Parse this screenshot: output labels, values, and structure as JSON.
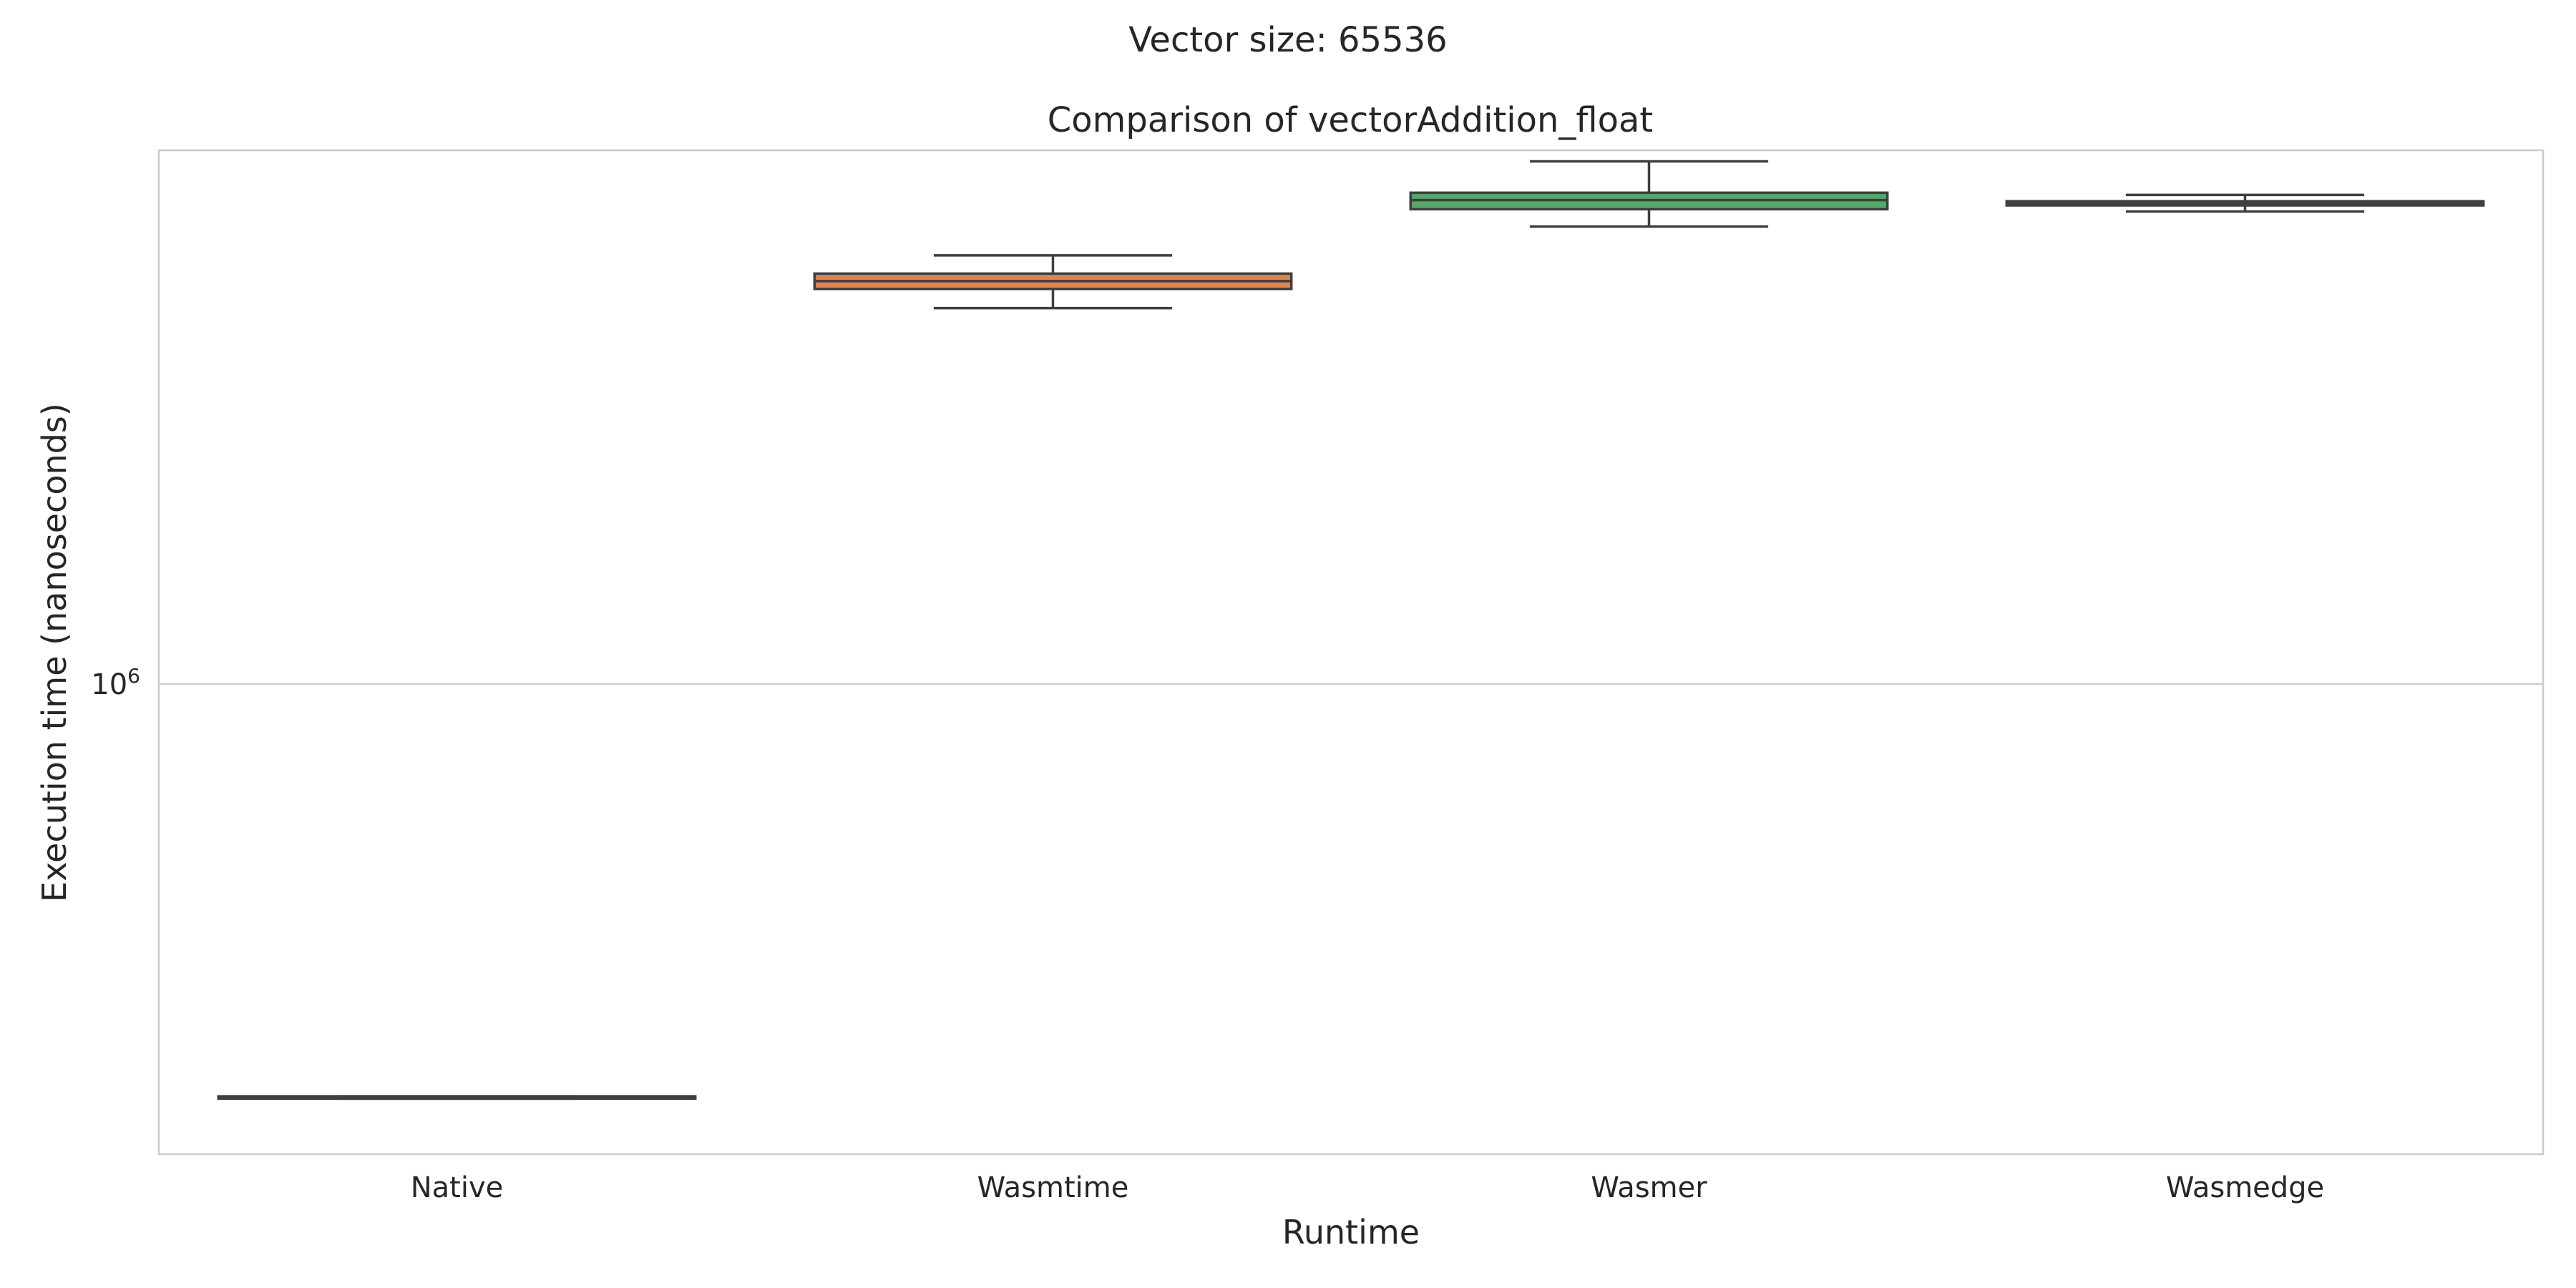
{
  "suptitle": "Vector size: 65536",
  "chart_data": {
    "type": "box",
    "title": "Comparison of vectorAddition_float",
    "xlabel": "Runtime",
    "ylabel": "Execution time (nanoseconds)",
    "yscale": "log",
    "ylim": [
      238000,
      5100000
    ],
    "yticks": [
      {
        "value": 1000000,
        "base": "10",
        "exp": "6"
      }
    ],
    "grid": "horizontal",
    "legend": "none",
    "categories": [
      "Native",
      "Wasmtime",
      "Wasmer",
      "Wasmedge"
    ],
    "boxes": [
      {
        "category": "Native",
        "color": "#4c72b0",
        "whislo": 282000,
        "q1": 282000,
        "med": 282800,
        "q3": 284000,
        "whishi": 284000
      },
      {
        "category": "Wasmtime",
        "color": "#dd8452",
        "whislo": 3150000,
        "q1": 3340000,
        "med": 3420000,
        "q3": 3500000,
        "whishi": 3700000
      },
      {
        "category": "Wasmer",
        "color": "#55a868",
        "whislo": 4040000,
        "q1": 4260000,
        "med": 4380000,
        "q3": 4480000,
        "whishi": 4930000
      },
      {
        "category": "Wasmedge",
        "color": "#8c613c",
        "whislo": 4230000,
        "q1": 4310000,
        "med": 4335000,
        "q3": 4365000,
        "whishi": 4450000
      }
    ]
  }
}
